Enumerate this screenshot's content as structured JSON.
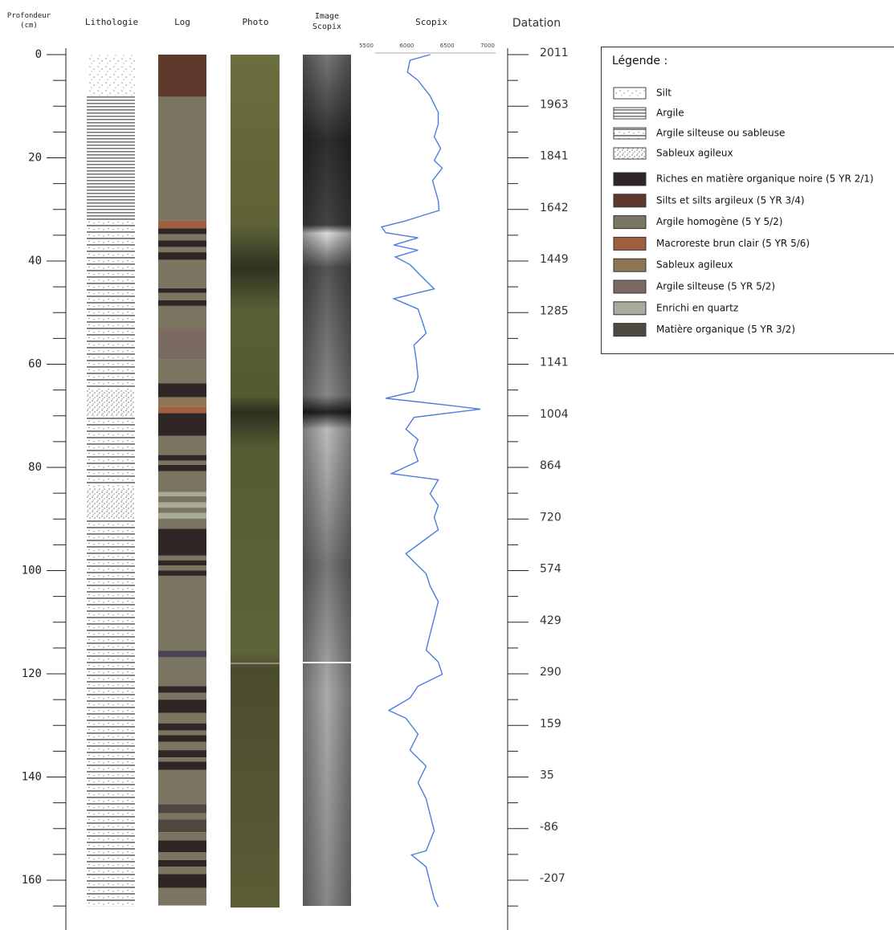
{
  "headers": {
    "depth": [
      "Profondeur",
      "(cm)"
    ],
    "lithology": "Lithologie",
    "log": "Log",
    "photo": "Photo",
    "image": [
      "Image",
      "Scopix"
    ],
    "scopix": "Scopix",
    "datation": "Datation"
  },
  "depth_axis": {
    "ylim": [
      0,
      169
    ],
    "yticks": [
      0,
      20,
      40,
      60,
      80,
      100,
      120,
      140,
      160
    ],
    "minor_ticks": [
      5,
      10,
      15,
      25,
      30,
      35,
      45,
      50,
      55,
      65,
      70,
      75,
      85,
      90,
      95,
      105,
      110,
      115,
      125,
      130,
      135,
      145,
      150,
      155,
      165
    ]
  },
  "datation": {
    "ticks": [
      {
        "depth": 0,
        "year": 2011
      },
      {
        "depth": 10,
        "year": 1963
      },
      {
        "depth": 20,
        "year": 1841
      },
      {
        "depth": 30,
        "year": 1642
      },
      {
        "depth": 40,
        "year": 1449
      },
      {
        "depth": 50,
        "year": 1285
      },
      {
        "depth": 60,
        "year": 1141
      },
      {
        "depth": 70,
        "year": 1004
      },
      {
        "depth": 80,
        "year": 864
      },
      {
        "depth": 90,
        "year": 720
      },
      {
        "depth": 100,
        "year": 574
      },
      {
        "depth": 110,
        "year": 429
      },
      {
        "depth": 120,
        "year": 290
      },
      {
        "depth": 130,
        "year": 159
      },
      {
        "depth": 140,
        "year": 35
      },
      {
        "depth": 150,
        "year": -86
      },
      {
        "depth": 160,
        "year": -207
      }
    ],
    "minor_ticks": [
      5,
      15,
      25,
      35,
      45,
      55,
      65,
      75,
      85,
      95,
      105,
      115,
      125,
      135,
      145,
      155,
      165
    ]
  },
  "lithology": [
    {
      "top": 0,
      "bottom": 8,
      "legend_item": 0
    },
    {
      "top": 8,
      "bottom": 32,
      "legend_item": 1
    },
    {
      "top": 32,
      "bottom": 65,
      "legend_item": 2
    },
    {
      "top": 65,
      "bottom": 70,
      "legend_item": 3
    },
    {
      "top": 70,
      "bottom": 84,
      "legend_item": 2
    },
    {
      "top": 84,
      "bottom": 90,
      "legend_item": 3
    },
    {
      "top": 90,
      "bottom": 165,
      "legend_item": 2
    }
  ],
  "log": [
    {
      "top": 0,
      "bottom": 8.2,
      "color": "#5e3a2c"
    },
    {
      "top": 8.2,
      "bottom": 32.2,
      "color": "#7a7561"
    },
    {
      "top": 32.2,
      "bottom": 33.7,
      "color": "#a0603f"
    },
    {
      "top": 33.7,
      "bottom": 34.8,
      "color": "#2f2626"
    },
    {
      "top": 34.8,
      "bottom": 36,
      "color": "#7a7561"
    },
    {
      "top": 36,
      "bottom": 37.3,
      "color": "#2f2626"
    },
    {
      "top": 37.3,
      "bottom": 38.3,
      "color": "#7a7561"
    },
    {
      "top": 38.3,
      "bottom": 39.8,
      "color": "#2f2626"
    },
    {
      "top": 39.8,
      "bottom": 45.3,
      "color": "#7a7561"
    },
    {
      "top": 45.3,
      "bottom": 46.2,
      "color": "#2f2626"
    },
    {
      "top": 46.2,
      "bottom": 47.6,
      "color": "#7a7561"
    },
    {
      "top": 47.6,
      "bottom": 48.7,
      "color": "#2f2626"
    },
    {
      "top": 48.7,
      "bottom": 53,
      "color": "#7a7561"
    },
    {
      "top": 53,
      "bottom": 59,
      "color": "#7a6a62"
    },
    {
      "top": 59,
      "bottom": 63.7,
      "color": "#7a7561"
    },
    {
      "top": 63.7,
      "bottom": 66.4,
      "color": "#2f2626"
    },
    {
      "top": 66.4,
      "bottom": 68.2,
      "color": "#8c7654"
    },
    {
      "top": 68.2,
      "bottom": 69.5,
      "color": "#a0603f"
    },
    {
      "top": 69.5,
      "bottom": 73.9,
      "color": "#2f2626"
    },
    {
      "top": 73.9,
      "bottom": 77.6,
      "color": "#7a7561"
    },
    {
      "top": 77.6,
      "bottom": 78.7,
      "color": "#2f2626"
    },
    {
      "top": 78.7,
      "bottom": 79.5,
      "color": "#7a7561"
    },
    {
      "top": 79.5,
      "bottom": 80.7,
      "color": "#2f2626"
    },
    {
      "top": 80.7,
      "bottom": 84.8,
      "color": "#7a7561"
    },
    {
      "top": 84.8,
      "bottom": 85.6,
      "color": "#a9ab9a"
    },
    {
      "top": 85.6,
      "bottom": 86.8,
      "color": "#7a7561"
    },
    {
      "top": 86.8,
      "bottom": 87.8,
      "color": "#a9ab9a"
    },
    {
      "top": 87.8,
      "bottom": 88.8,
      "color": "#7a7561"
    },
    {
      "top": 88.8,
      "bottom": 89.9,
      "color": "#a9ab9a"
    },
    {
      "top": 89.9,
      "bottom": 91.9,
      "color": "#7a7561"
    },
    {
      "top": 91.9,
      "bottom": 97.1,
      "color": "#2f2626"
    },
    {
      "top": 97.1,
      "bottom": 98,
      "color": "#7a7561"
    },
    {
      "top": 98,
      "bottom": 99,
      "color": "#2f2626"
    },
    {
      "top": 99,
      "bottom": 100,
      "color": "#7a7561"
    },
    {
      "top": 100,
      "bottom": 101,
      "color": "#2f2626"
    },
    {
      "top": 101,
      "bottom": 115.5,
      "color": "#7a7561"
    },
    {
      "top": 115.5,
      "bottom": 116.8,
      "color": "#4a4550"
    },
    {
      "top": 116.8,
      "bottom": 122.4,
      "color": "#7a7561"
    },
    {
      "top": 122.4,
      "bottom": 123.7,
      "color": "#2f2626"
    },
    {
      "top": 123.7,
      "bottom": 125,
      "color": "#7a7561"
    },
    {
      "top": 125,
      "bottom": 127.6,
      "color": "#2f2626"
    },
    {
      "top": 127.6,
      "bottom": 129.6,
      "color": "#7a7561"
    },
    {
      "top": 129.6,
      "bottom": 131,
      "color": "#2f2626"
    },
    {
      "top": 131,
      "bottom": 131.9,
      "color": "#7a7561"
    },
    {
      "top": 131.9,
      "bottom": 133.2,
      "color": "#2f2626"
    },
    {
      "top": 133.2,
      "bottom": 134.8,
      "color": "#7a7561"
    },
    {
      "top": 134.8,
      "bottom": 136.2,
      "color": "#2f2626"
    },
    {
      "top": 136.2,
      "bottom": 137,
      "color": "#7a7561"
    },
    {
      "top": 137,
      "bottom": 138.6,
      "color": "#2f2626"
    },
    {
      "top": 138.6,
      "bottom": 145.3,
      "color": "#7a7561"
    },
    {
      "top": 145.3,
      "bottom": 147,
      "color": "#4e4840"
    },
    {
      "top": 147,
      "bottom": 148.2,
      "color": "#7a7561"
    },
    {
      "top": 148.2,
      "bottom": 150.7,
      "color": "#4e4840"
    },
    {
      "top": 150.7,
      "bottom": 152.3,
      "color": "#7a7561"
    },
    {
      "top": 152.3,
      "bottom": 154.6,
      "color": "#2f2626"
    },
    {
      "top": 154.6,
      "bottom": 156.1,
      "color": "#7a7561"
    },
    {
      "top": 156.1,
      "bottom": 157.4,
      "color": "#2f2626"
    },
    {
      "top": 157.4,
      "bottom": 158.8,
      "color": "#7a7561"
    },
    {
      "top": 158.8,
      "bottom": 161.5,
      "color": "#2f2626"
    },
    {
      "top": 161.5,
      "bottom": 164.9,
      "color": "#7a7561"
    }
  ],
  "scopix": {
    "xlim": [
      5500,
      7000
    ],
    "xticks": [
      5500,
      6000,
      6500,
      7000
    ],
    "color": "#4a7de0",
    "depth": [
      0,
      1.1,
      3.4,
      5,
      8,
      11.2,
      13.5,
      15.9,
      18.2,
      20.5,
      22,
      24.4,
      28.3,
      30.2,
      32.2,
      33.4,
      34.5,
      35.5,
      36.9,
      37.9,
      39.2,
      40.7,
      43.1,
      45.4,
      47.3,
      49.3,
      51.6,
      54,
      56.3,
      59.4,
      62.5,
      65.3,
      66.6,
      68,
      68.7,
      70.3,
      72.6,
      74.6,
      76.5,
      78.8,
      81.2,
      82.4,
      85.1,
      87.4,
      89.7,
      92.1,
      94.4,
      96.7,
      98.3,
      100.6,
      103,
      106,
      109.2,
      112.3,
      115.4,
      117.7,
      120.1,
      122.4,
      124.7,
      127.1,
      128.6,
      131.7,
      134.8,
      137.9,
      141.1,
      144.2,
      147.3,
      150.4,
      154.3,
      155.1,
      157.4,
      160.5,
      163.6,
      165.2
    ],
    "values": [
      6290,
      6040,
      6010,
      6140,
      6290,
      6390,
      6390,
      6340,
      6420,
      6340,
      6440,
      6320,
      6390,
      6400,
      5990,
      5690,
      5740,
      6140,
      5840,
      6140,
      5860,
      6040,
      6190,
      6340,
      5840,
      6140,
      6190,
      6240,
      6090,
      6120,
      6140,
      6090,
      5740,
      6540,
      6910,
      6090,
      5990,
      6140,
      6090,
      6140,
      5810,
      6390,
      6290,
      6390,
      6340,
      6390,
      6190,
      5990,
      6090,
      6240,
      6290,
      6390,
      6340,
      6290,
      6240,
      6390,
      6440,
      6140,
      6040,
      5780,
      5990,
      6140,
      6040,
      6240,
      6140,
      6240,
      6290,
      6340,
      6240,
      6060,
      6240,
      6290,
      6340,
      6390
    ]
  },
  "legend": {
    "title": "Légende :",
    "patterns": [
      {
        "label": "Silt"
      },
      {
        "label": "Argile"
      },
      {
        "label": "Argile silteuse ou sableuse"
      },
      {
        "label": "Sableux agileux"
      }
    ],
    "colors": [
      {
        "label": "Riches en matière organique noire (5 YR 2/1)",
        "color": "#2f2626"
      },
      {
        "label": "Silts et silts argileux (5 YR 3/4)",
        "color": "#5e3a2c"
      },
      {
        "label": "Argile homogène (5 Y 5/2)",
        "color": "#7a7561"
      },
      {
        "label": "Macroreste brun clair (5 YR 5/6)",
        "color": "#a0603f"
      },
      {
        "label": "Sableux agileux",
        "color": "#8c7654"
      },
      {
        "label": "Argile silteuse (5 YR 5/2)",
        "color": "#7a6a62"
      },
      {
        "label": "Enrichi en quartz",
        "color": "#a9ab9a"
      },
      {
        "label": "Matière organique (5 YR 3/2)",
        "color": "#4e4840"
      }
    ]
  }
}
